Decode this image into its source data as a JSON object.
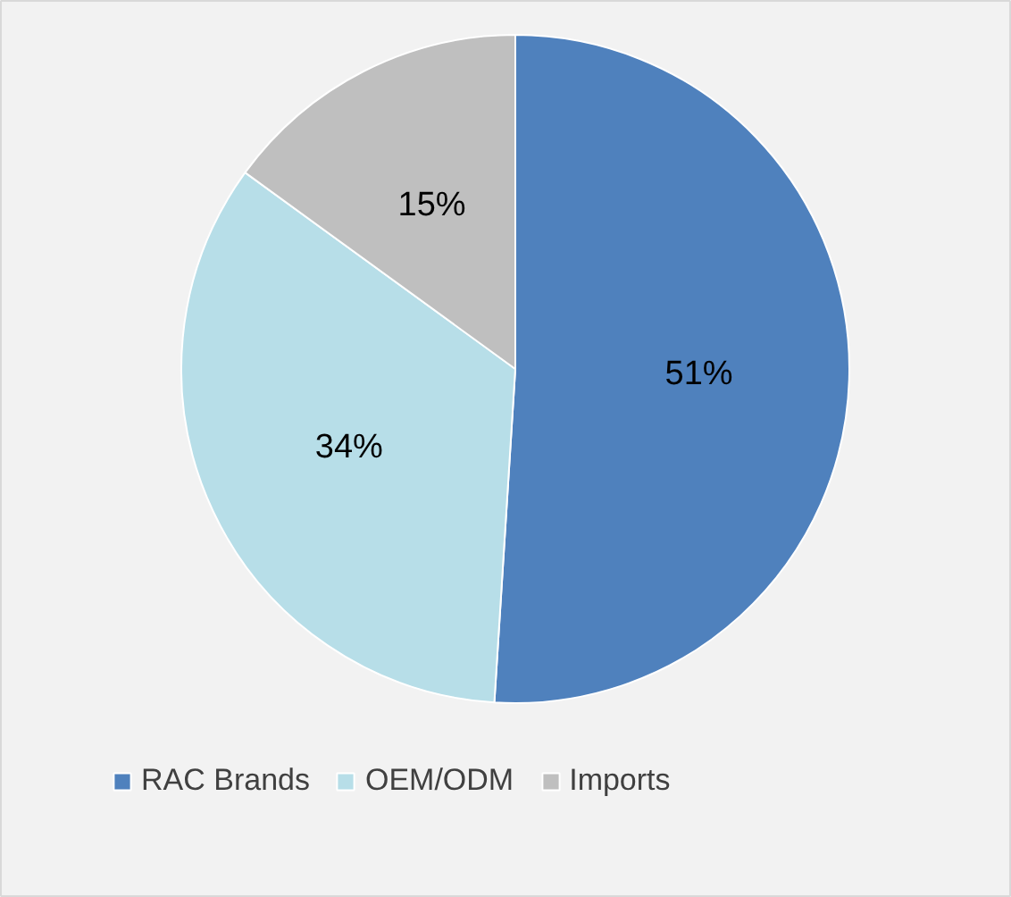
{
  "chart_data": {
    "type": "pie",
    "categories": [
      "RAC Brands",
      "OEM/ODM",
      "Imports"
    ],
    "values": [
      51,
      34,
      15
    ],
    "colors": [
      "#4f81bd",
      "#b7dee8",
      "#bfbfbf"
    ],
    "value_labels": [
      "51%",
      "34%",
      "15%"
    ],
    "legend": "bottom"
  }
}
